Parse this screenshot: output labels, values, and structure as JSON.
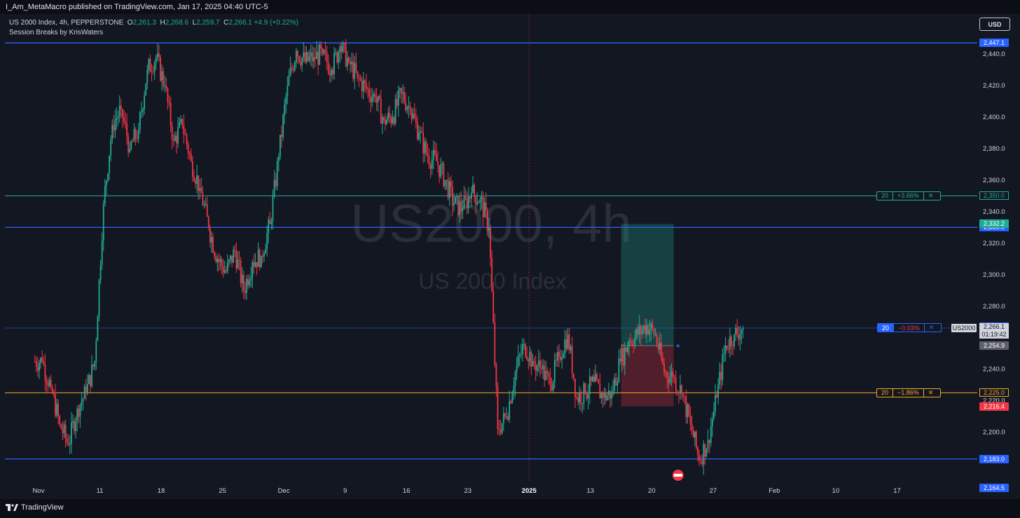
{
  "header": {
    "published": "I_Am_MetaMacro published on TradingView.com, Jan 17, 2025 04:40 UTC-5",
    "symbol_line": "US 2000 Index, 4h, PEPPERSTONE",
    "ohlc": {
      "O": "2,261.3",
      "H": "2,268.6",
      "L": "2,259.7",
      "C": "2,266.1",
      "change": "+4.9 (+0.22%)"
    },
    "indicator": "Session Breaks by KrisWaters",
    "currency_button": "USD"
  },
  "footer": {
    "brand": "TradingView"
  },
  "watermark": {
    "symbol": "US2000, 4h",
    "name": "US 2000 Index"
  },
  "chart_data": {
    "type": "candlestick",
    "symbol": "US2000",
    "interval": "4h",
    "price_axis": {
      "range": [
        2160,
        2455
      ],
      "ticks": [
        "2,200.0",
        "2,220.0",
        "2,240.0",
        "2,280.0",
        "2,300.0",
        "2,320.0",
        "2,340.0",
        "2,360.0",
        "2,380.0",
        "2,400.0",
        "2,420.0",
        "2,440.0"
      ],
      "tick_values": [
        2200,
        2220,
        2240,
        2280,
        2300,
        2320,
        2340,
        2360,
        2380,
        2400,
        2420,
        2440
      ]
    },
    "time_axis": {
      "labels": [
        "Nov",
        "11",
        "18",
        "25",
        "Dec",
        "9",
        "16",
        "23",
        "2025",
        "13",
        "20",
        "27",
        "Feb",
        "10",
        "17"
      ],
      "label_index": [
        0,
        7,
        14,
        21,
        28,
        35,
        42,
        49,
        56,
        63,
        70,
        77,
        84,
        91,
        98
      ],
      "bold": [
        "2025"
      ]
    },
    "horizontal_lines": [
      {
        "price": 2447.1,
        "label": "2,447.1",
        "color": "#2962ff"
      },
      {
        "price": 2330.0,
        "label": "2,330.0",
        "color": "#2962ff"
      },
      {
        "price": 2183.0,
        "label": "2,183.0",
        "color": "#2962ff"
      }
    ],
    "alert_lines": [
      {
        "price": 2350.0,
        "label": "2,350.0",
        "count": "20",
        "pct": "+3.66%",
        "color": "#22ab94",
        "close": "✕"
      },
      {
        "price": 2225.0,
        "label": "2,225.0",
        "count": "20",
        "pct": "−1.86%",
        "color": "#f5a623",
        "close": "✕"
      },
      {
        "price": 2266.1,
        "label": "",
        "count": "20",
        "pct": "−0.03%",
        "color": "#2962ff",
        "close": "✕"
      }
    ],
    "price_labels": [
      {
        "price": 2332.2,
        "text": "2,332.2",
        "bg": "#22ab94"
      },
      {
        "price": 2267.1,
        "text": "2,267.1",
        "bg": "#2962ff"
      },
      {
        "price": 2254.9,
        "text": "2,254.9",
        "bg": "#5d606b"
      },
      {
        "price": 2216.4,
        "text": "2,216.4",
        "bg": "#f23645"
      },
      {
        "price": 2164.5,
        "text": "2,164.5",
        "bg": "#2962ff"
      }
    ],
    "last_price": {
      "price": 2266.1,
      "symbol_tag": "US2000",
      "value": "2,266.1",
      "countdown": "01:19:42"
    },
    "position_tool": {
      "entry": 2254.9,
      "target": 2332.2,
      "stop": 2216.4,
      "start_index": 66.5,
      "end_index": 72.5
    },
    "session_break_index": 56,
    "daily_closes": [
      2245,
      2228,
      2205,
      2192,
      2215,
      2225,
      2245,
      2345,
      2395,
      2405,
      2380,
      2392,
      2430,
      2438,
      2420,
      2385,
      2395,
      2372,
      2355,
      2330,
      2310,
      2302,
      2315,
      2290,
      2308,
      2312,
      2332,
      2375,
      2420,
      2442,
      2435,
      2438,
      2440,
      2430,
      2445,
      2435,
      2425,
      2418,
      2412,
      2398,
      2400,
      2415,
      2405,
      2390,
      2375,
      2372,
      2360,
      2345,
      2342,
      2352,
      2348,
      2330,
      2202,
      2210,
      2238,
      2256,
      2245,
      2240,
      2230,
      2248,
      2262,
      2222,
      2225,
      2232,
      2222,
      2225,
      2245,
      2258,
      2262,
      2268,
      2262,
      2238,
      2235,
      2225,
      2205,
      2182,
      2195,
      2222,
      2255,
      2262,
      2266
    ]
  }
}
